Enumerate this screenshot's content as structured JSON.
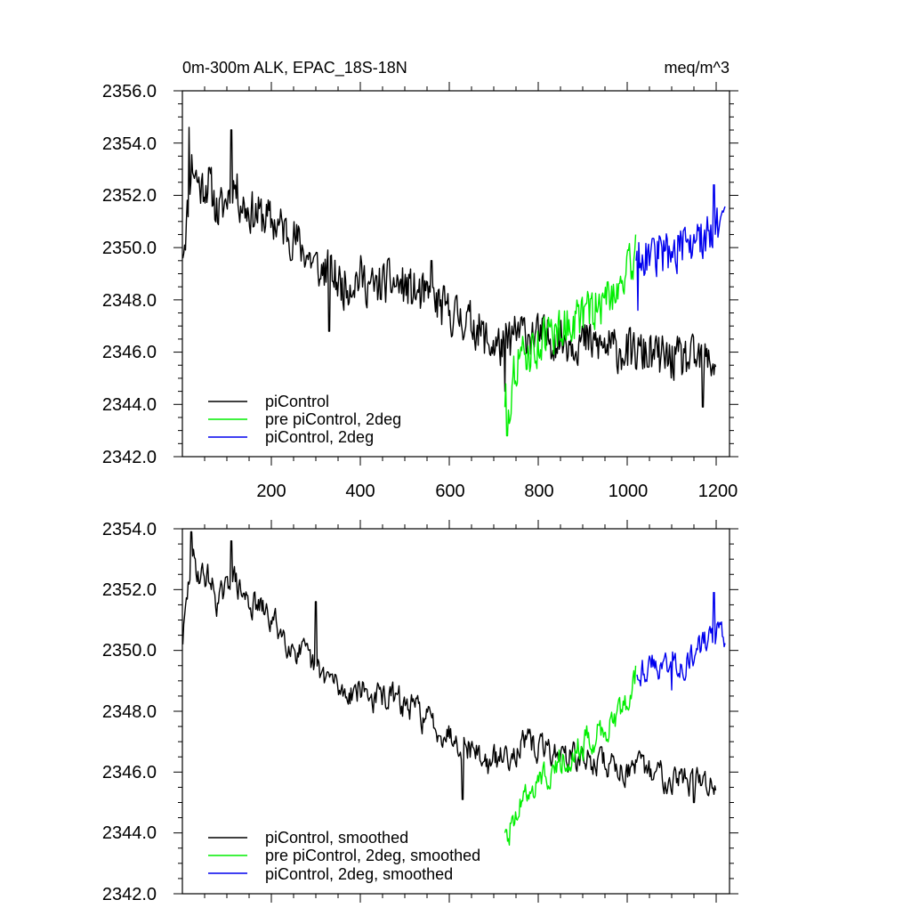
{
  "colors": {
    "picontrol": "#000000",
    "pre_picontrol_2deg": "#00ee00",
    "picontrol_2deg": "#0000ee"
  },
  "chart_data": [
    {
      "type": "line",
      "title": "0m-300m ALK, EPAC_18S-18N",
      "units": "meq/m^3",
      "xlim": [
        0,
        1230
      ],
      "ylim": [
        2342,
        2356
      ],
      "xticks": [
        "200",
        "400",
        "600",
        "800",
        "1000",
        "1200"
      ],
      "yticks": [
        "2342.0",
        "2344.0",
        "2346.0",
        "2348.0",
        "2350.0",
        "2352.0",
        "2354.0",
        "2356.0"
      ],
      "legend_position": "bottom-left",
      "series": [
        {
          "name": "piControl",
          "color": "#000000",
          "anchors_x": [
            1,
            10,
            20,
            40,
            60,
            80,
            100,
            110,
            130,
            150,
            180,
            200,
            230,
            260,
            300,
            330,
            360,
            400,
            430,
            460,
            500,
            530,
            560,
            600,
            630,
            660,
            690,
            720,
            760,
            800,
            850,
            900,
            950,
            1000,
            1050,
            1100,
            1150,
            1200
          ],
          "anchors_y": [
            2350.0,
            2351.0,
            2353.3,
            2352.3,
            2352.5,
            2351.3,
            2351.8,
            2352.7,
            2351.8,
            2351.4,
            2351.2,
            2351.0,
            2350.7,
            2350.2,
            2349.3,
            2349.1,
            2348.5,
            2348.9,
            2348.4,
            2348.7,
            2348.5,
            2348.2,
            2348.0,
            2347.5,
            2347.3,
            2347.0,
            2346.3,
            2346.2,
            2346.8,
            2346.6,
            2346.5,
            2346.4,
            2346.2,
            2346.0,
            2345.9,
            2345.7,
            2345.7,
            2345.6
          ],
          "peaks": [
            [
              15,
              2354.6
            ],
            [
              110,
              2354.5
            ],
            [
              310,
              2348.8
            ],
            [
              330,
              2346.8
            ],
            [
              560,
              2349.5
            ],
            [
              725,
              2344.5
            ],
            [
              1170,
              2343.9
            ]
          ]
        },
        {
          "name": "pre piControl, 2deg",
          "color": "#00ee00",
          "anchors_x": [
            725,
            735,
            750,
            780,
            820,
            860,
            900,
            940,
            980,
            1020
          ],
          "anchors_y": [
            2344.3,
            2344.0,
            2345.6,
            2346.0,
            2346.6,
            2347.0,
            2347.4,
            2347.8,
            2348.6,
            2349.6
          ],
          "peaks": [
            [
              730,
              2342.8
            ],
            [
              1020,
              2350.5
            ]
          ]
        },
        {
          "name": "piControl, 2deg",
          "color": "#0000ee",
          "anchors_x": [
            1020,
            1060,
            1100,
            1140,
            1180,
            1220
          ],
          "anchors_y": [
            2349.9,
            2349.7,
            2349.9,
            2350.0,
            2350.5,
            2350.8
          ],
          "peaks": [
            [
              1024,
              2347.6
            ],
            [
              1195,
              2352.4
            ]
          ]
        }
      ]
    },
    {
      "type": "line",
      "xlim": [
        0,
        1230
      ],
      "ylim": [
        2342,
        2354
      ],
      "yticks": [
        "2342.0",
        "2344.0",
        "2346.0",
        "2348.0",
        "2350.0",
        "2352.0",
        "2354.0"
      ],
      "legend_position": "bottom-left",
      "series": [
        {
          "name": "piControl, smoothed",
          "color": "#000000",
          "anchors_x": [
            1,
            10,
            20,
            40,
            60,
            80,
            100,
            110,
            130,
            150,
            180,
            200,
            230,
            260,
            300,
            330,
            360,
            400,
            430,
            460,
            500,
            530,
            560,
            600,
            630,
            660,
            690,
            720,
            760,
            800,
            850,
            900,
            950,
            1000,
            1050,
            1100,
            1150,
            1200
          ],
          "anchors_y": [
            2350.4,
            2351.5,
            2353.0,
            2352.5,
            2352.4,
            2351.6,
            2351.9,
            2352.6,
            2351.9,
            2351.6,
            2351.3,
            2351.0,
            2350.5,
            2350.0,
            2349.3,
            2349.1,
            2348.6,
            2348.8,
            2348.4,
            2348.5,
            2348.2,
            2348.0,
            2347.6,
            2347.3,
            2347.0,
            2346.7,
            2346.2,
            2346.5,
            2346.9,
            2346.8,
            2346.6,
            2346.4,
            2346.3,
            2346.1,
            2346.0,
            2345.9,
            2345.7,
            2345.6
          ],
          "peaks": [
            [
              20,
              2353.9
            ],
            [
              110,
              2353.6
            ],
            [
              300,
              2351.6
            ],
            [
              630,
              2345.1
            ],
            [
              1150,
              2345.0
            ]
          ]
        },
        {
          "name": "pre piControl, 2deg, smoothed",
          "color": "#00ee00",
          "anchors_x": [
            725,
            740,
            760,
            800,
            840,
            880,
            920,
            960,
            1000,
            1020
          ],
          "anchors_y": [
            2344.2,
            2344.1,
            2345.1,
            2345.7,
            2346.3,
            2346.8,
            2347.1,
            2347.6,
            2348.3,
            2349.0
          ],
          "peaks": [
            [
              735,
              2343.6
            ],
            [
              1020,
              2349.5
            ]
          ]
        },
        {
          "name": "piControl, 2deg, smoothed",
          "color": "#0000ee",
          "anchors_x": [
            1022,
            1060,
            1100,
            1140,
            1180,
            1220
          ],
          "anchors_y": [
            2349.4,
            2349.5,
            2349.6,
            2349.7,
            2350.3,
            2350.6
          ],
          "peaks": [
            [
              1100,
              2348.7
            ],
            [
              1195,
              2351.9
            ]
          ]
        }
      ]
    }
  ]
}
